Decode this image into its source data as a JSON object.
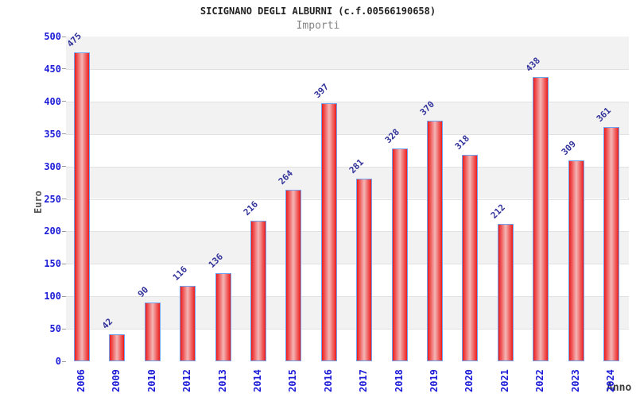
{
  "chart_data": {
    "type": "bar",
    "title": "SICIGNANO DEGLI ALBURNI (c.f.00566190658)",
    "subtitle": "Importi",
    "xlabel": "Anno",
    "ylabel": "Euro",
    "categories": [
      "2006",
      "2009",
      "2010",
      "2012",
      "2013",
      "2014",
      "2015",
      "2016",
      "2017",
      "2018",
      "2019",
      "2020",
      "2021",
      "2022",
      "2023",
      "2024"
    ],
    "values": [
      475,
      42,
      90,
      116,
      136,
      216,
      264,
      397,
      281,
      328,
      370,
      318,
      212,
      438,
      309,
      361
    ],
    "ylim": [
      0,
      500
    ],
    "ytick_step": 50,
    "grid": true,
    "legend_position": "none",
    "colors": {
      "bar_edge": "#ee1c1c",
      "bar_center": "#f3b6b6",
      "bar_border": "#6fa3ef",
      "tick_label": "#1c1cd8",
      "value_label": "#32329b",
      "band_gray": "#f2f2f2",
      "band_white": "#ffffff",
      "gridline": "#e1e1e1",
      "plot_border": "#cfcfcf",
      "axis_title": "#555555",
      "title": "#222222",
      "subtitle": "#858585"
    }
  }
}
